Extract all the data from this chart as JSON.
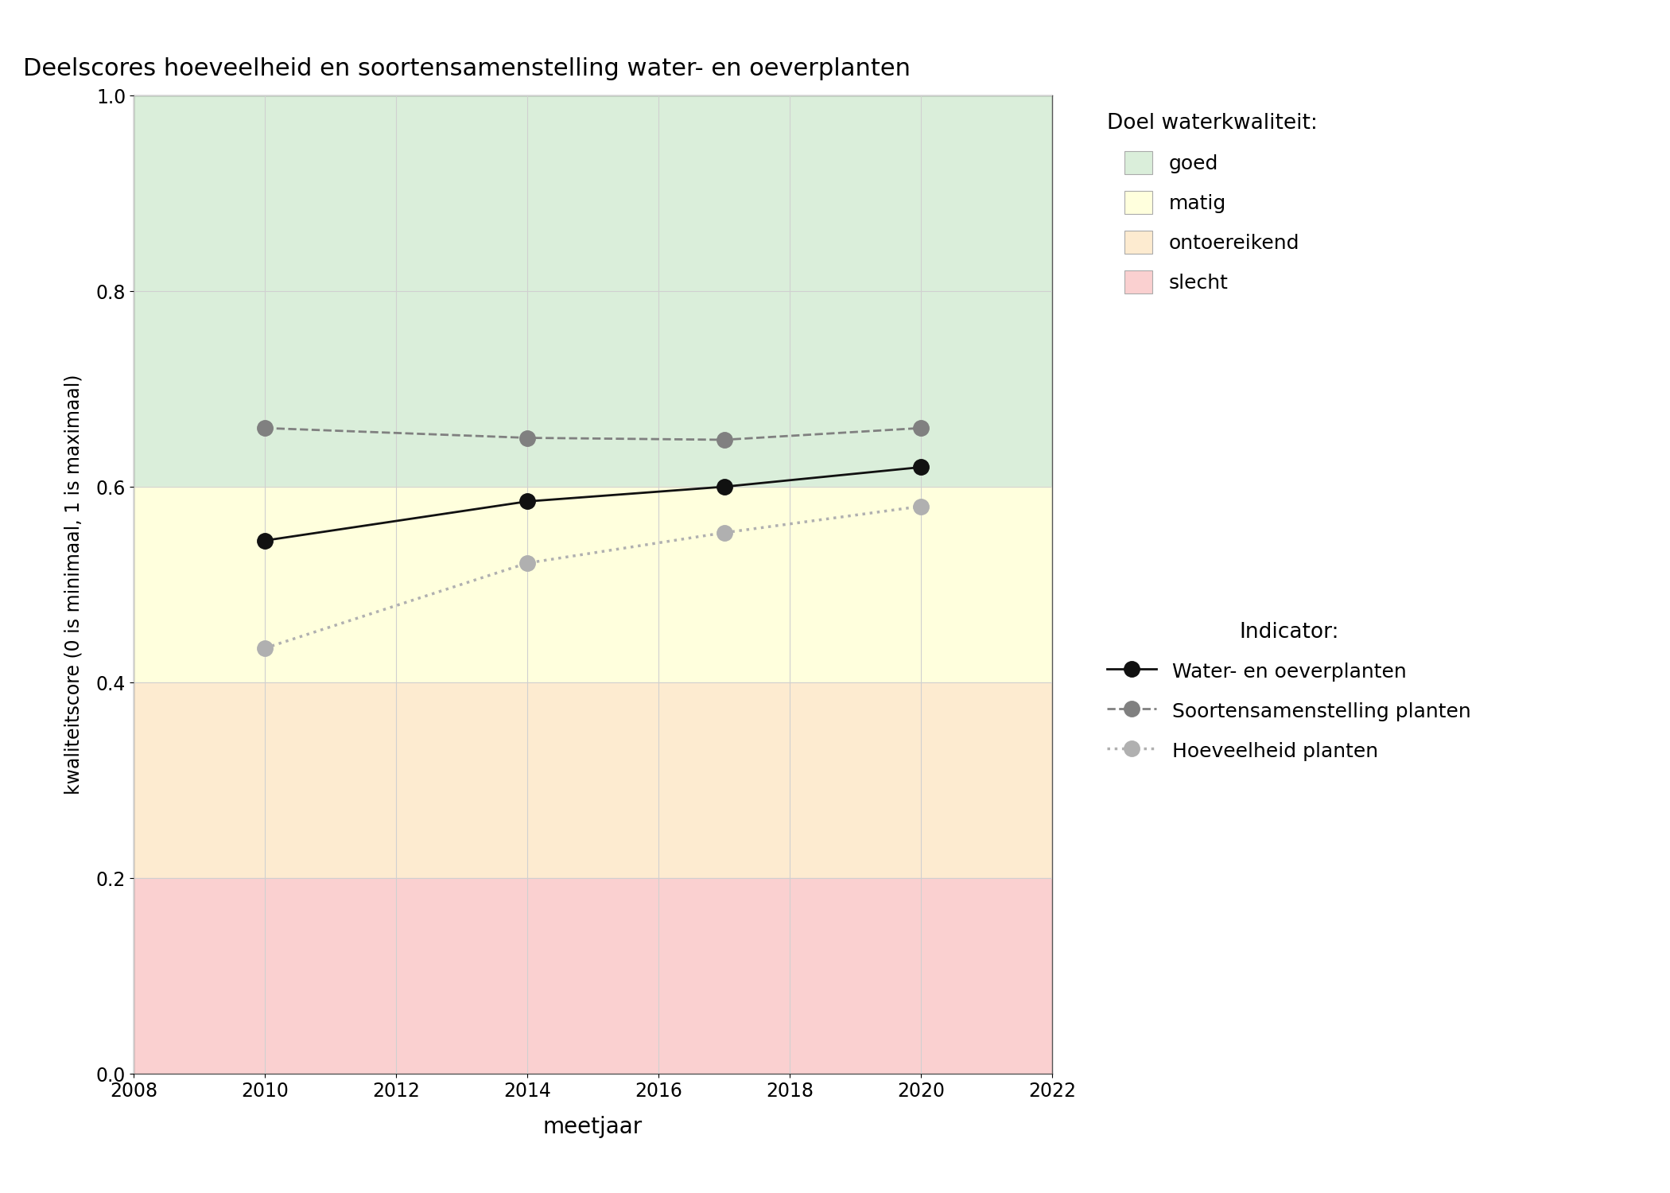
{
  "title": "Deelscores hoeveelheid en soortensamenstelling water- en oeverplanten",
  "xlabel": "meetjaar",
  "ylabel": "kwaliteitscore (0 is minimaal, 1 is maximaal)",
  "xlim": [
    2008,
    2022
  ],
  "ylim": [
    0.0,
    1.0
  ],
  "xticks": [
    2008,
    2010,
    2012,
    2014,
    2016,
    2018,
    2020,
    2022
  ],
  "yticks": [
    0.0,
    0.2,
    0.4,
    0.6,
    0.8,
    1.0
  ],
  "background_color": "#ffffff",
  "plot_bg_color": "#ffffff",
  "zones": {
    "goed": {
      "ymin": 0.6,
      "ymax": 1.0,
      "color": "#daeeda"
    },
    "matig": {
      "ymin": 0.4,
      "ymax": 0.6,
      "color": "#ffffdd"
    },
    "ontoereikend": {
      "ymin": 0.2,
      "ymax": 0.4,
      "color": "#fdebd0"
    },
    "slecht": {
      "ymin": 0.0,
      "ymax": 0.2,
      "color": "#fad0d0"
    }
  },
  "zone_order": [
    "goed",
    "matig",
    "ontoereikend",
    "slecht"
  ],
  "series": {
    "water_oeverplanten": {
      "years": [
        2010,
        2014,
        2017,
        2020
      ],
      "values": [
        0.545,
        0.585,
        0.6,
        0.62
      ],
      "color": "#111111",
      "linestyle": "solid",
      "linewidth": 2.0,
      "marker": "o",
      "markersize": 14,
      "label": "Water- en oeverplanten"
    },
    "soortensamenstelling": {
      "years": [
        2010,
        2014,
        2017,
        2020
      ],
      "values": [
        0.66,
        0.65,
        0.648,
        0.66
      ],
      "color": "#808080",
      "linestyle": "dashed",
      "linewidth": 2.0,
      "marker": "o",
      "markersize": 14,
      "label": "Soortensamenstelling planten"
    },
    "hoeveelheid": {
      "years": [
        2010,
        2014,
        2017,
        2020
      ],
      "values": [
        0.435,
        0.522,
        0.553,
        0.58
      ],
      "color": "#b0b0b0",
      "linestyle": "dotted",
      "linewidth": 2.5,
      "marker": "o",
      "markersize": 14,
      "label": "Hoeveelheid planten"
    }
  },
  "series_order": [
    "water_oeverplanten",
    "soortensamenstelling",
    "hoeveelheid"
  ],
  "legend_zone_colors": {
    "goed": "#daeeda",
    "matig": "#ffffdd",
    "ontoereikend": "#fdebd0",
    "slecht": "#fad0d0"
  },
  "grid_color": "#d0d0d0",
  "grid_linewidth": 0.8,
  "legend1_title": "Doel waterkwaliteit:",
  "legend2_title": "Indicator:"
}
